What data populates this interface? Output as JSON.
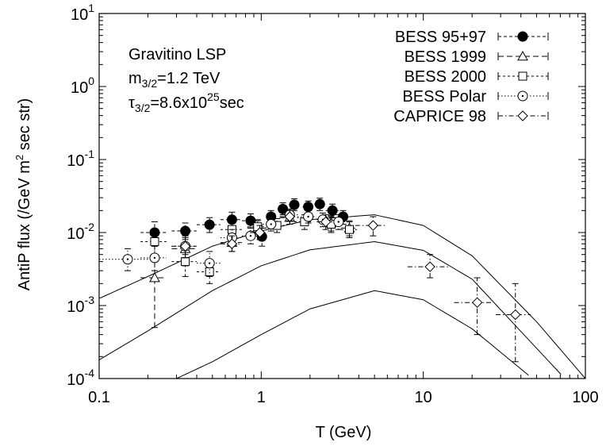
{
  "chart_data": {
    "type": "scatter",
    "xlabel": "T (GeV)",
    "ylabel": "AntiP flux (/GeV m² sec str)",
    "xscale": "log",
    "yscale": "log",
    "xlim": [
      0.1,
      100
    ],
    "ylim": [
      0.0001,
      10
    ],
    "x_ticks": [
      "0.1",
      "1",
      "10",
      "100"
    ],
    "y_ticks": [
      {
        "base": "10",
        "exp": "-4"
      },
      {
        "base": "10",
        "exp": "-3"
      },
      {
        "base": "10",
        "exp": "-2"
      },
      {
        "base": "10",
        "exp": "-1"
      },
      {
        "base": "10",
        "exp": "0"
      },
      {
        "base": "10",
        "exp": "1"
      }
    ],
    "grid": false,
    "legend_position": "top-right",
    "annotation": {
      "line1": "Gravitino LSP",
      "line2_main": "m",
      "line2_sub": "3/2",
      "line2_rest": "=1.2 TeV",
      "line3_main": "τ",
      "line3_sub": "3/2",
      "line3_mid": "=8.6x10",
      "line3_sup": "25",
      "line3_rest": "sec"
    },
    "model_curves": [
      {
        "x": [
          0.1,
          0.2,
          0.5,
          1,
          2,
          5,
          10,
          20,
          50,
          100
        ],
        "y": [
          0.00125,
          0.0025,
          0.0065,
          0.0105,
          0.015,
          0.0175,
          0.0125,
          0.0048,
          0.0006,
          0.0001
        ]
      },
      {
        "x": [
          0.1,
          0.2,
          0.5,
          1,
          2,
          5,
          10,
          20,
          50,
          100
        ],
        "y": [
          0.00018,
          0.00045,
          0.0016,
          0.0035,
          0.0058,
          0.0075,
          0.0057,
          0.0023,
          0.00026,
          5e-05
        ]
      },
      {
        "x": [
          0.3,
          0.5,
          1,
          2,
          5,
          10,
          20,
          50,
          70
        ],
        "y": [
          0.0001,
          0.00017,
          0.0004,
          0.0009,
          0.0016,
          0.0012,
          0.00048,
          9e-05,
          4e-05
        ]
      }
    ],
    "series": [
      {
        "name": "BESS 95+97",
        "marker": "filled-circle",
        "line": "dashed",
        "points": [
          {
            "x": 0.22,
            "y": 0.01,
            "err": [
              0.007,
              0.014
            ],
            "xerr": [
              0.18,
              0.26
            ]
          },
          {
            "x": 0.34,
            "y": 0.0105,
            "err": [
              0.008,
              0.0135
            ],
            "xerr": [
              0.28,
              0.4
            ]
          },
          {
            "x": 0.48,
            "y": 0.0128,
            "err": [
              0.01,
              0.016
            ],
            "xerr": [
              0.4,
              0.56
            ]
          },
          {
            "x": 0.66,
            "y": 0.015,
            "err": [
              0.012,
              0.019
            ],
            "xerr": [
              0.56,
              0.76
            ]
          },
          {
            "x": 0.86,
            "y": 0.0145,
            "err": [
              0.0115,
              0.018
            ],
            "xerr": [
              0.76,
              0.96
            ]
          },
          {
            "x": 1.01,
            "y": 0.0088,
            "err": [
              0.0065,
              0.0115
            ],
            "xerr": [
              0.94,
              1.08
            ]
          },
          {
            "x": 1.15,
            "y": 0.0165,
            "err": [
              0.0135,
              0.02
            ],
            "xerr": [
              1.08,
              1.22
            ]
          },
          {
            "x": 1.36,
            "y": 0.021,
            "err": [
              0.0175,
              0.0255
            ],
            "xerr": [
              1.26,
              1.46
            ]
          },
          {
            "x": 1.6,
            "y": 0.024,
            "err": [
              0.02,
              0.029
            ],
            "xerr": [
              1.48,
              1.72
            ]
          },
          {
            "x": 1.95,
            "y": 0.0225,
            "err": [
              0.0185,
              0.027
            ],
            "xerr": [
              1.8,
              2.1
            ]
          },
          {
            "x": 2.3,
            "y": 0.0245,
            "err": [
              0.02,
              0.0295
            ],
            "xerr": [
              2.12,
              2.48
            ]
          },
          {
            "x": 2.75,
            "y": 0.02,
            "err": [
              0.016,
              0.0245
            ],
            "xerr": [
              2.5,
              3.0
            ]
          },
          {
            "x": 3.2,
            "y": 0.0165,
            "err": [
              0.013,
              0.02
            ],
            "xerr": [
              3.0,
              3.4
            ]
          }
        ]
      },
      {
        "name": "BESS 1999",
        "marker": "open-triangle",
        "line": "long-dash",
        "points": [
          {
            "x": 0.22,
            "y": 0.0024,
            "err": [
              0.0005,
              0.0065
            ],
            "xerr": [
              0.18,
              0.26
            ]
          },
          {
            "x": 0.34,
            "y": 0.006,
            "err": [
              0.0035,
              0.009
            ],
            "xerr": [
              0.28,
              0.4
            ]
          },
          {
            "x": 0.66,
            "y": 0.0073,
            "err": [
              0.0055,
              0.0095
            ],
            "xerr": [
              0.56,
              0.76
            ]
          },
          {
            "x": 0.95,
            "y": 0.0115,
            "err": [
              0.009,
              0.0145
            ],
            "xerr": [
              0.82,
              1.08
            ]
          },
          {
            "x": 1.5,
            "y": 0.016,
            "err": [
              0.013,
              0.0195
            ],
            "xerr": [
              1.3,
              1.7
            ]
          },
          {
            "x": 2.7,
            "y": 0.0135,
            "err": [
              0.0105,
              0.017
            ],
            "xerr": [
              2.4,
              3.0
            ]
          },
          {
            "x": 3.5,
            "y": 0.0115,
            "err": [
              0.009,
              0.0145
            ],
            "xerr": [
              3.1,
              3.9
            ]
          }
        ]
      },
      {
        "name": "BESS 2000",
        "marker": "open-square",
        "line": "short-dash",
        "points": [
          {
            "x": 0.22,
            "y": 0.0075,
            "err": [
              0.005,
              0.0105
            ],
            "xerr": [
              0.18,
              0.26
            ]
          },
          {
            "x": 0.34,
            "y": 0.004,
            "err": [
              0.0025,
              0.006
            ],
            "xerr": [
              0.28,
              0.4
            ]
          },
          {
            "x": 0.48,
            "y": 0.0029,
            "err": [
              0.002,
              0.0042
            ],
            "xerr": [
              0.4,
              0.56
            ]
          },
          {
            "x": 0.66,
            "y": 0.011,
            "err": [
              0.0085,
              0.014
            ],
            "xerr": [
              0.56,
              0.76
            ]
          },
          {
            "x": 0.95,
            "y": 0.012,
            "err": [
              0.0095,
              0.015
            ],
            "xerr": [
              0.82,
              1.08
            ]
          },
          {
            "x": 1.25,
            "y": 0.0125,
            "err": [
              0.01,
              0.0155
            ],
            "xerr": [
              1.1,
              1.4
            ]
          },
          {
            "x": 1.85,
            "y": 0.014,
            "err": [
              0.011,
              0.0175
            ],
            "xerr": [
              1.6,
              2.1
            ]
          },
          {
            "x": 2.7,
            "y": 0.013,
            "err": [
              0.01,
              0.0165
            ],
            "xerr": [
              2.4,
              3.0
            ]
          },
          {
            "x": 3.5,
            "y": 0.011,
            "err": [
              0.0085,
              0.014
            ],
            "xerr": [
              3.1,
              3.9
            ]
          }
        ]
      },
      {
        "name": "BESS Polar",
        "marker": "open-circle-dot",
        "line": "dotted",
        "points": [
          {
            "x": 0.15,
            "y": 0.0043,
            "err": [
              0.003,
              0.006
            ],
            "xerr": [
              0.1,
              0.2
            ]
          },
          {
            "x": 0.22,
            "y": 0.0045,
            "err": [
              0.003,
              0.0065
            ],
            "xerr": [
              0.18,
              0.26
            ]
          },
          {
            "x": 0.34,
            "y": 0.0065,
            "err": [
              0.0045,
              0.009
            ],
            "xerr": [
              0.28,
              0.4
            ]
          },
          {
            "x": 0.48,
            "y": 0.0038,
            "err": [
              0.0025,
              0.0055
            ],
            "xerr": [
              0.4,
              0.56
            ]
          },
          {
            "x": 0.66,
            "y": 0.0085,
            "err": [
              0.0065,
              0.011
            ],
            "xerr": [
              0.56,
              0.76
            ]
          },
          {
            "x": 0.86,
            "y": 0.009,
            "err": [
              0.007,
              0.0115
            ],
            "xerr": [
              0.76,
              0.96
            ]
          },
          {
            "x": 1.15,
            "y": 0.013,
            "err": [
              0.0105,
              0.016
            ],
            "xerr": [
              1.02,
              1.28
            ]
          },
          {
            "x": 1.5,
            "y": 0.0175,
            "err": [
              0.0145,
              0.021
            ],
            "xerr": [
              1.32,
              1.68
            ]
          },
          {
            "x": 1.95,
            "y": 0.0165,
            "err": [
              0.0135,
              0.02
            ],
            "xerr": [
              1.75,
              2.15
            ]
          },
          {
            "x": 2.4,
            "y": 0.015,
            "err": [
              0.012,
              0.0185
            ],
            "xerr": [
              2.2,
              2.6
            ]
          },
          {
            "x": 3.0,
            "y": 0.014,
            "err": [
              0.011,
              0.0175
            ],
            "xerr": [
              2.7,
              3.3
            ]
          }
        ]
      },
      {
        "name": "CAPRICE 98",
        "marker": "open-diamond",
        "line": "dash-dot",
        "points": [
          {
            "x": 0.34,
            "y": 0.0065,
            "err": [
              0.005,
              0.0085
            ],
            "xerr": [
              0.28,
              0.4
            ]
          },
          {
            "x": 0.66,
            "y": 0.007,
            "err": [
              0.0055,
              0.009
            ],
            "xerr": [
              0.56,
              0.76
            ]
          },
          {
            "x": 0.98,
            "y": 0.01,
            "err": [
              0.008,
              0.0125
            ],
            "xerr": [
              0.85,
              1.1
            ]
          },
          {
            "x": 1.5,
            "y": 0.0165,
            "err": [
              0.013,
              0.02
            ],
            "xerr": [
              1.3,
              1.7
            ]
          },
          {
            "x": 2.5,
            "y": 0.014,
            "err": [
              0.011,
              0.0175
            ],
            "xerr": [
              2.2,
              2.8
            ]
          },
          {
            "x": 4.9,
            "y": 0.0125,
            "err": [
              0.009,
              0.0165
            ],
            "xerr": [
              3.8,
              6.0
            ]
          },
          {
            "x": 11.0,
            "y": 0.0034,
            "err": [
              0.0024,
              0.005
            ],
            "xerr": [
              8.0,
              14.5
            ]
          },
          {
            "x": 21.5,
            "y": 0.0011,
            "err": [
              0.0004,
              0.0024
            ],
            "xerr": [
              15.5,
              27.0
            ]
          },
          {
            "x": 37.0,
            "y": 0.00075,
            "err": [
              0.00017,
              0.002
            ],
            "xerr": [
              28.0,
              46.0
            ]
          }
        ]
      }
    ]
  }
}
